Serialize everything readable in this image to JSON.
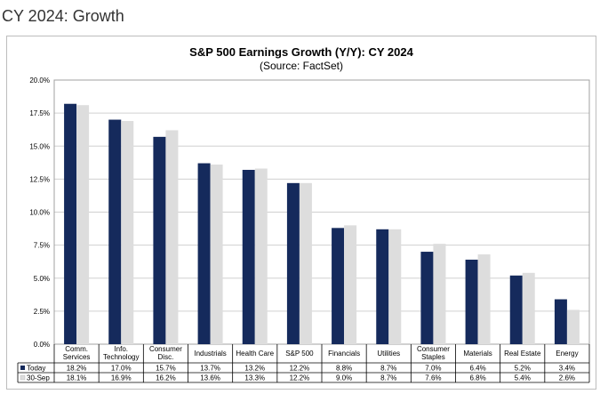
{
  "page": {
    "heading": "CY 2024: Growth"
  },
  "colors": {
    "series_today": "#152a5c",
    "series_30sep": "#dddddd",
    "grid": "#d0d0d0",
    "axis": "#000000",
    "frame": "#bdbdbd"
  },
  "chart_data": {
    "type": "bar",
    "title": "S&P 500 Earnings Growth (Y/Y): CY 2024",
    "subtitle": "(Source: FactSet)",
    "xlabel": "",
    "ylabel": "",
    "ylim": [
      0,
      20
    ],
    "yticks": [
      "0.0%",
      "2.5%",
      "5.0%",
      "7.5%",
      "10.0%",
      "12.5%",
      "15.0%",
      "17.5%",
      "20.0%"
    ],
    "grid": true,
    "legend": "data table below chart",
    "categories": [
      [
        "Comm.",
        "Services"
      ],
      [
        "Info.",
        "Technology"
      ],
      [
        "Consumer",
        "Disc."
      ],
      [
        "Industrials"
      ],
      [
        "Health Care"
      ],
      [
        "S&P 500"
      ],
      [
        "Financials"
      ],
      [
        "Utilities"
      ],
      [
        "Consumer",
        "Staples"
      ],
      [
        "Materials"
      ],
      [
        "Real Estate"
      ],
      [
        "Energy"
      ]
    ],
    "series": [
      {
        "name": "Today",
        "values": [
          18.2,
          17.0,
          15.7,
          13.7,
          13.2,
          12.2,
          8.8,
          8.7,
          7.0,
          6.4,
          5.2,
          3.4
        ],
        "labels": [
          "18.2%",
          "17.0%",
          "15.7%",
          "13.7%",
          "13.2%",
          "12.2%",
          "8.8%",
          "8.7%",
          "7.0%",
          "6.4%",
          "5.2%",
          "3.4%"
        ]
      },
      {
        "name": "30-Sep",
        "values": [
          18.1,
          16.9,
          16.2,
          13.6,
          13.3,
          12.2,
          9.0,
          8.7,
          7.6,
          6.8,
          5.4,
          2.6
        ],
        "labels": [
          "18.1%",
          "16.9%",
          "16.2%",
          "13.6%",
          "13.3%",
          "12.2%",
          "9.0%",
          "8.7%",
          "7.6%",
          "6.8%",
          "5.4%",
          "2.6%"
        ]
      }
    ]
  }
}
